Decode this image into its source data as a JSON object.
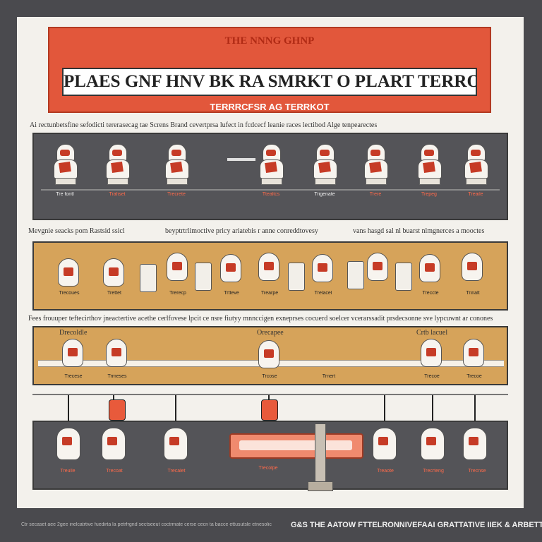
{
  "banner": {
    "top": "THE NNNG GHNP",
    "main": "PLAES GNF HNV BK RA SMRKT O PLART TERROPOSIT ACTATIC",
    "sub": "TERRRCFSR AG TERRKOT"
  },
  "captions": {
    "c1": "Ai rectunbetsfine sefodicti tererasecag tae Screns Brand cevertprsa lufect in fcdcecf leanie races lectibod Alge tenpearectes",
    "c2": "Mevgnie seacks pom Rastsid ssicl",
    "c3": "beyptrtrlimoctive pricy ariatebis r anne conreddtovesy",
    "c4": "vans hasgd sal nl buarst nlmgnerces a mooctes",
    "c5": "Fees frouuper teftecirthov jneactertive acethe cerlfovese lpcit ce nsre fiutyy mnnccigen exneprses cocuerd soelcer vcerarssadit prsdecsonne sve lypcuwnt ar conones",
    "c6": "Drecoldle",
    "c7": "Orecapee",
    "c8": "Crtb lacuel"
  },
  "labels": {
    "row1": [
      "Tre fontl",
      "Trafiset",
      "Trecrete",
      "Ttealtcs",
      "Trigenate",
      "Trere",
      "Trepeg",
      "Treaile"
    ],
    "row2": [
      "Trecoues",
      "Trettet",
      "Trerecp",
      "Trtteve",
      "Trearpe",
      "Trelacel",
      "Treccte",
      "Trinalt"
    ],
    "row3": [
      "Trecese",
      "Trmeses",
      "Trcose",
      "Trnert",
      "Trecoe",
      "Trecoe"
    ],
    "row4": [
      "Treulle",
      "Trecoat",
      "Trecalet",
      "Trecolpe",
      "Treaote",
      "Trecrteng",
      "Trecnse"
    ]
  },
  "footer": {
    "left": "Ctr secaset aee 2gee inelcatrtive fuedirta la petrfrgnd sectseeut coctrmate cerse cecn ta bacce ettusutsle etnesolic",
    "right": "G&S THE AATOW FTTELRONNIVEFAAI GRATTATIVE IIEK & ARBETT"
  },
  "colors": {
    "accent": "#e2573b",
    "dark_panel": "#545458",
    "gold_panel": "#d6a35a",
    "red_mark": "#c63b26"
  }
}
